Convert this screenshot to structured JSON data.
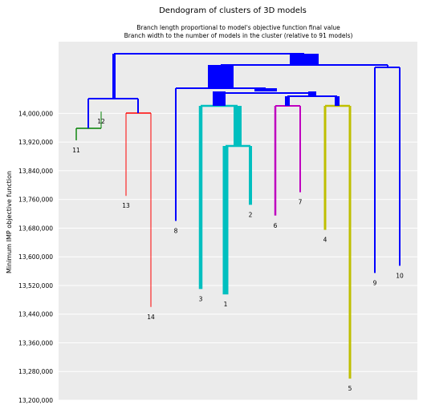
{
  "chart_data": {
    "type": "dendrogram",
    "title": "Dendogram of clusters of 3D models",
    "subtitle_lines": [
      "Branch length proportional to model's objective function final value",
      "Branch width to the number of models in the cluster (relative to 91 models)"
    ],
    "ylabel": "Minimum IMP objective function",
    "ylim": [
      13200000,
      14200000
    ],
    "yticks": [
      13200000,
      13280000,
      13360000,
      13440000,
      13520000,
      13600000,
      13680000,
      13760000,
      13840000,
      13920000,
      14000000
    ],
    "ytick_labels": [
      "13,200,000",
      "13,280,000",
      "13,360,000",
      "13,440,000",
      "13,520,000",
      "13,600,000",
      "13,680,000",
      "13,760,000",
      "13,840,000",
      "13,920,000",
      "14,000,000"
    ],
    "grid": true,
    "background": "#ebebeb",
    "colors": {
      "blue": "#0000ff",
      "green": "#008000",
      "red": "#ff0000",
      "cyan": "#00bfbf",
      "magenta": "#bf00bf",
      "olive": "#bfbf00"
    },
    "leaves": [
      {
        "label": "11",
        "value": 13925000,
        "color": "green"
      },
      {
        "label": "12",
        "value": 14005000,
        "color": "green"
      },
      {
        "label": "13",
        "value": 13770000,
        "color": "red"
      },
      {
        "label": "14",
        "value": 13460000,
        "color": "red"
      },
      {
        "label": "8",
        "value": 13700000,
        "color": "blue"
      },
      {
        "label": "3",
        "value": 13510000,
        "color": "cyan"
      },
      {
        "label": "1",
        "value": 13495000,
        "color": "cyan"
      },
      {
        "label": "2",
        "value": 13745000,
        "color": "cyan"
      },
      {
        "label": "6",
        "value": 13715000,
        "color": "magenta"
      },
      {
        "label": "7",
        "value": 13780000,
        "color": "magenta"
      },
      {
        "label": "4",
        "value": 13675000,
        "color": "olive"
      },
      {
        "label": "5",
        "value": 13260000,
        "color": "olive"
      },
      {
        "label": "9",
        "value": 13555000,
        "color": "blue"
      },
      {
        "label": "10",
        "value": 13575000,
        "color": "blue"
      }
    ]
  }
}
